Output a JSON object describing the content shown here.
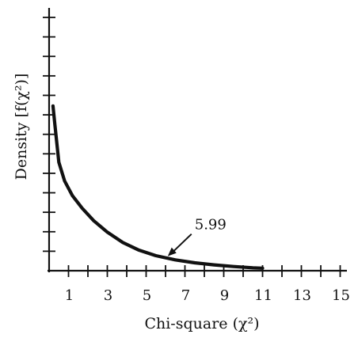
{
  "chart_data": {
    "type": "line",
    "title": "",
    "xlabel": "Chi-square (χ²)",
    "ylabel": "Density [f(χ²)]",
    "xlim": [
      0,
      15.4
    ],
    "x_ticks_labeled": [
      1,
      3,
      5,
      7,
      9,
      11,
      13,
      15
    ],
    "x_tick_labels": [
      "1",
      "3",
      "5",
      "7",
      "9",
      "11",
      "13",
      "15"
    ],
    "x_minor_ticks": [
      2,
      4,
      6,
      8,
      10,
      12,
      14
    ],
    "y_tick_count": 13,
    "y_tick_labels_shown": false,
    "grid": false,
    "series": [
      {
        "x": [
          0.2,
          0.3,
          0.5,
          0.8,
          1.2,
          1.7,
          2.3,
          3.0,
          3.8,
          4.6,
          5.5,
          6.5,
          7.5,
          8.5,
          9.5,
          10.5,
          11.0
        ],
        "y": [
          7.9,
          7.0,
          5.2,
          4.3,
          3.6,
          3.0,
          2.4,
          1.85,
          1.35,
          1.0,
          0.72,
          0.52,
          0.38,
          0.28,
          0.2,
          0.14,
          0.12
        ]
      }
    ],
    "annotations": [
      {
        "text": "5.99",
        "x": 5.99,
        "y": 0.62
      }
    ],
    "colors": {
      "line": "#111111",
      "axis": "#111111"
    }
  }
}
